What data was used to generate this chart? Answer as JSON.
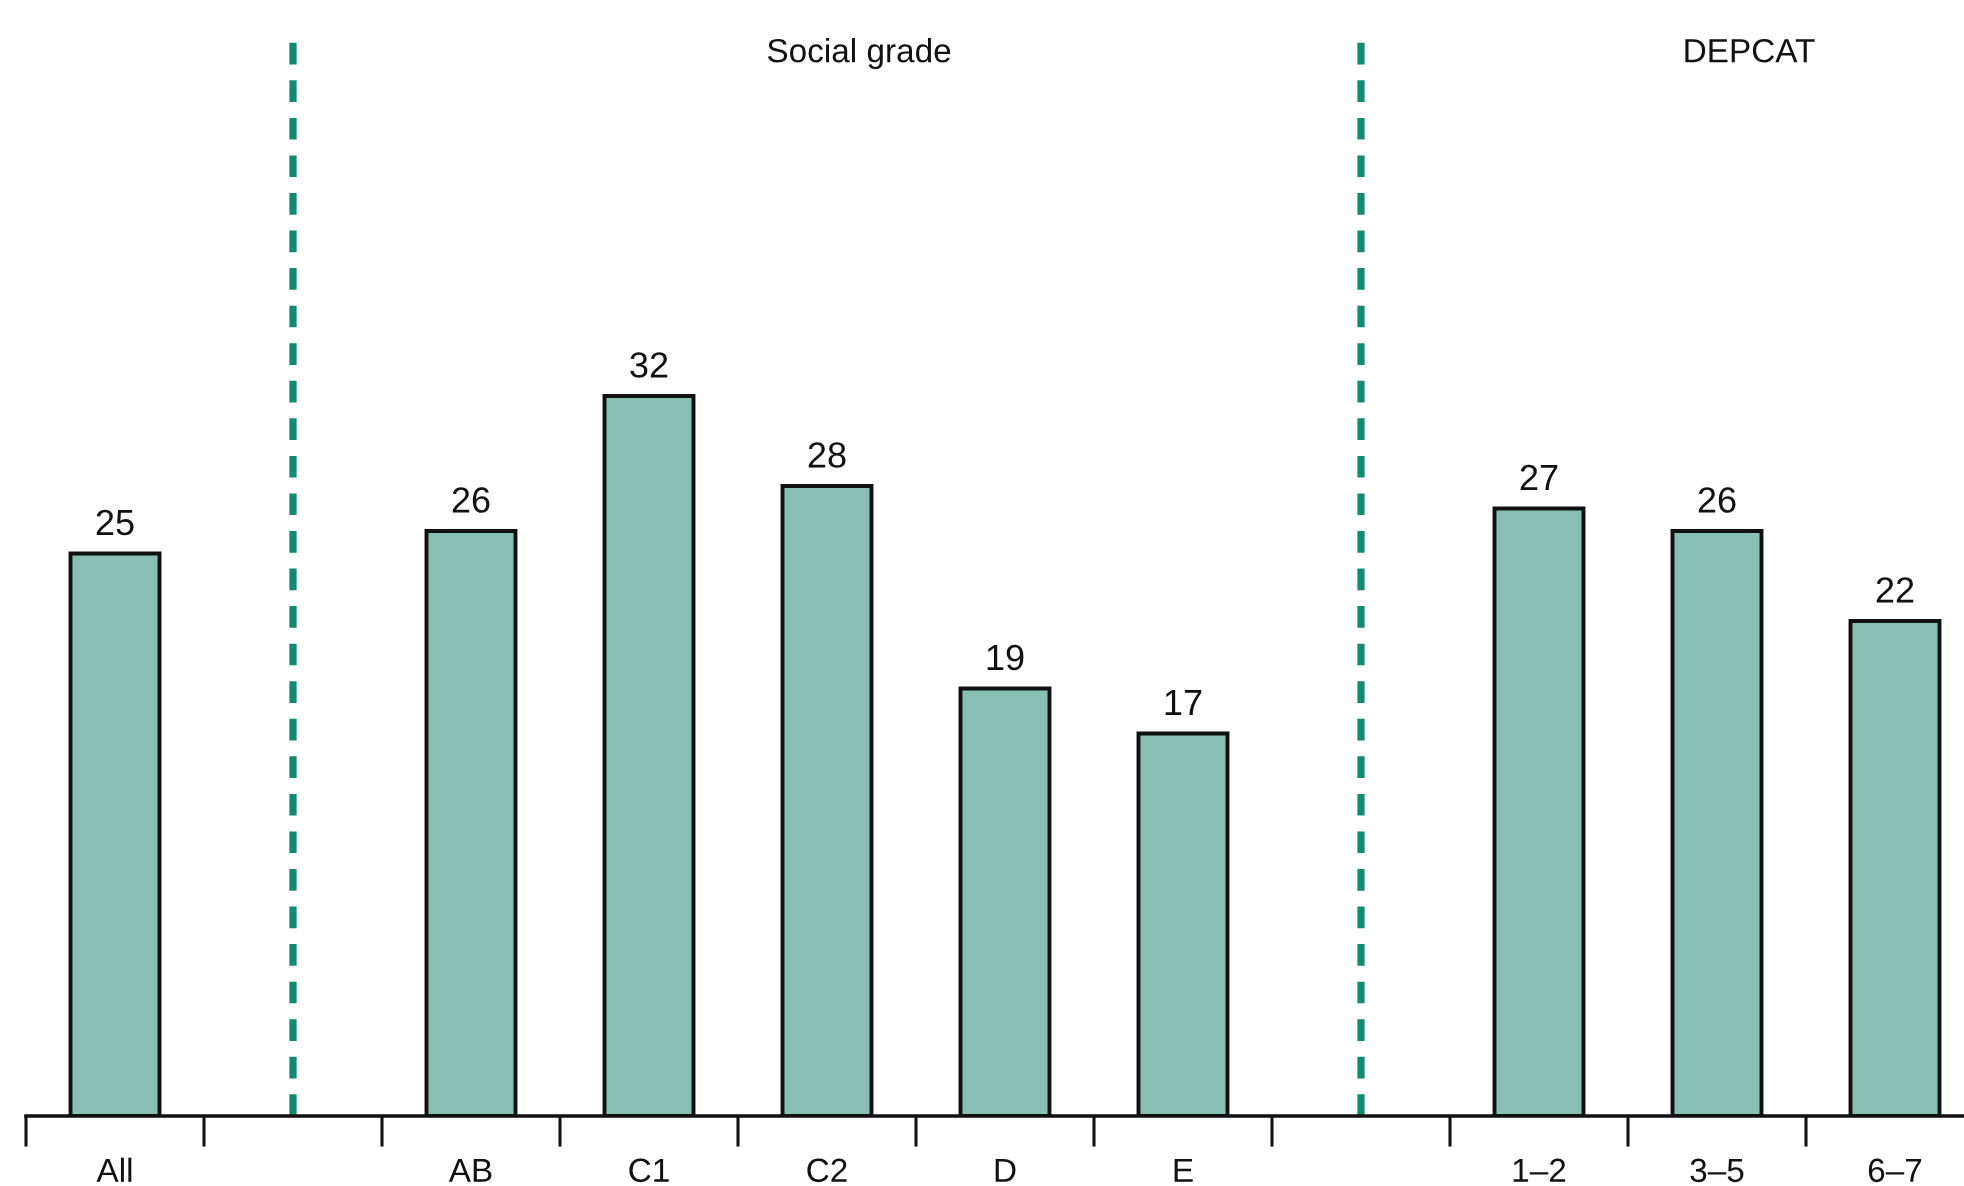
{
  "chart_data": {
    "type": "bar",
    "categories": [
      "All",
      null,
      "AB",
      "C1",
      "C2",
      "D",
      "E",
      null,
      "1–2",
      "3–5",
      "6–7"
    ],
    "values": [
      25,
      null,
      26,
      32,
      28,
      19,
      17,
      null,
      27,
      26,
      22
    ],
    "color": "#88bfb3",
    "data_labels": true,
    "annotations": [
      "Social grade",
      "DEPCAT"
    ]
  }
}
